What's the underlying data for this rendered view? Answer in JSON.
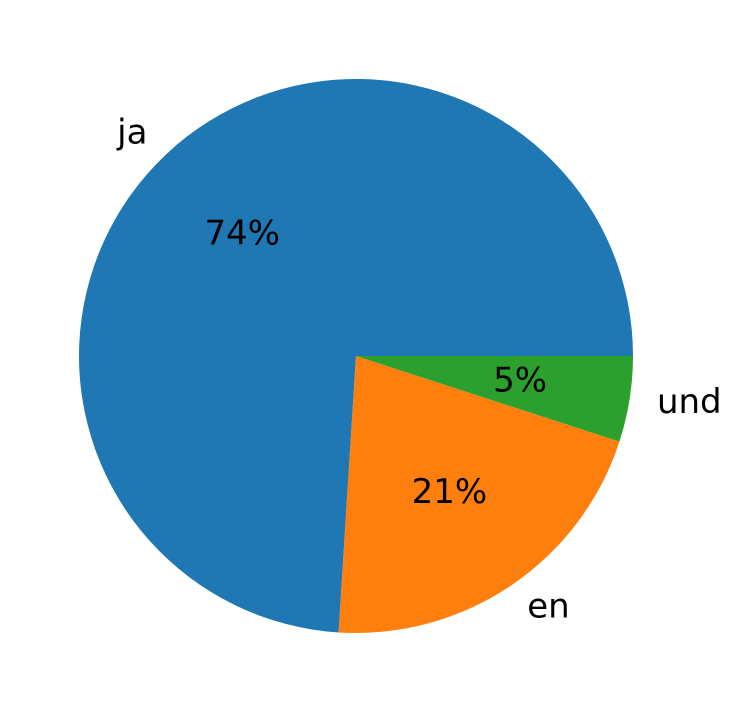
{
  "chart_data": {
    "type": "pie",
    "categories": [
      "ja",
      "en",
      "und"
    ],
    "values": [
      74,
      21,
      5
    ],
    "value_labels": [
      "74%",
      "21%",
      "5%"
    ],
    "colors": [
      "#1f77b4",
      "#ff7f0e",
      "#2ca02c"
    ]
  }
}
